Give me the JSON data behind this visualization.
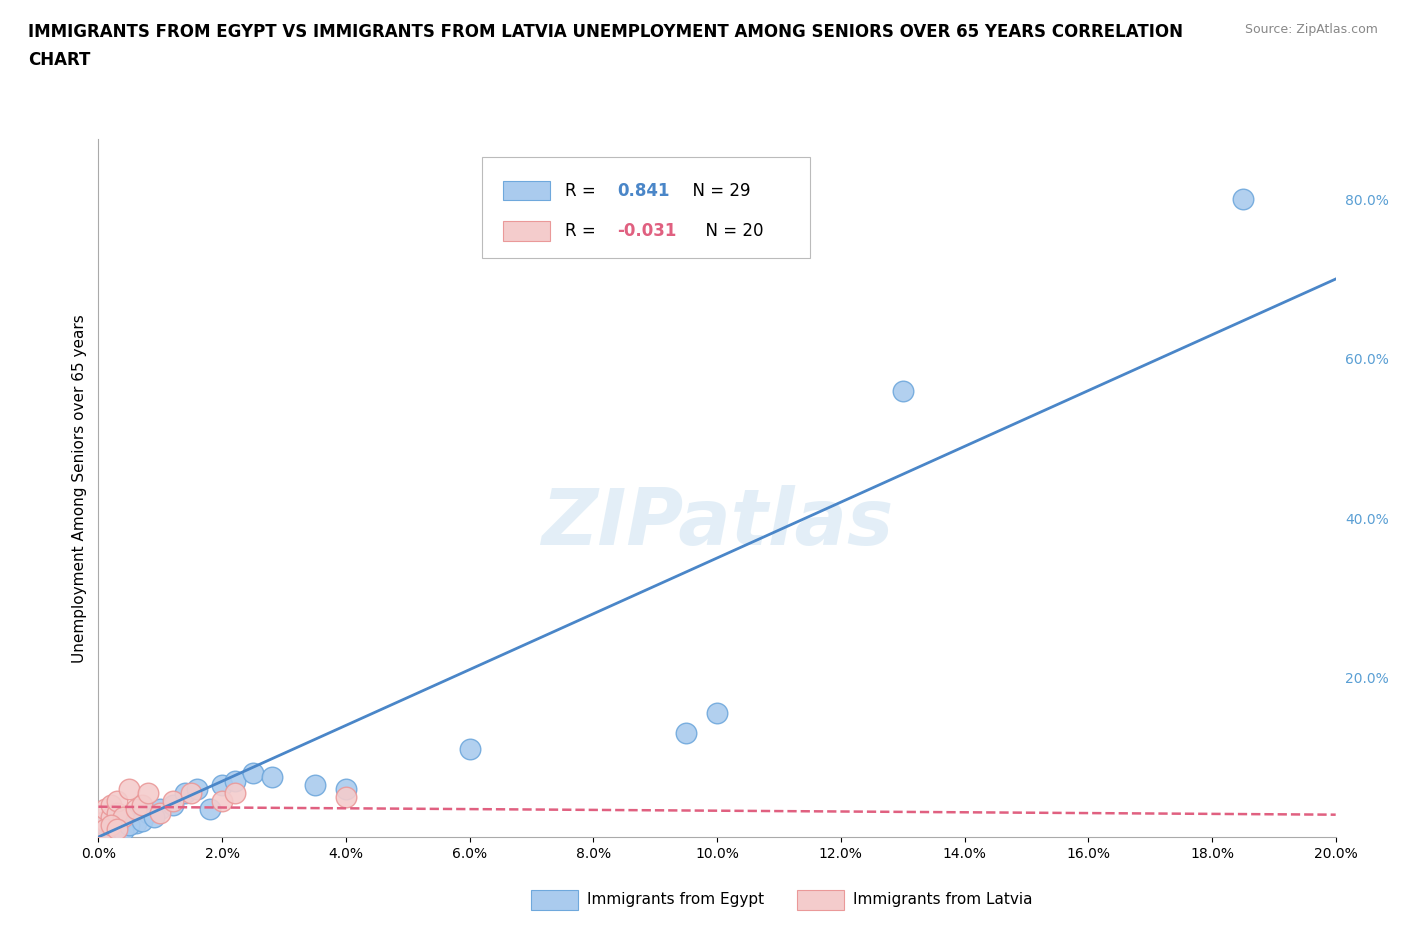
{
  "title_line1": "IMMIGRANTS FROM EGYPT VS IMMIGRANTS FROM LATVIA UNEMPLOYMENT AMONG SENIORS OVER 65 YEARS CORRELATION",
  "title_line2": "CHART",
  "source_text": "Source: ZipAtlas.com",
  "watermark": "ZIPatlas",
  "ylabel": "Unemployment Among Seniors over 65 years",
  "xlim": [
    0.0,
    0.2
  ],
  "ylim": [
    0.0,
    0.875
  ],
  "xticks": [
    0.0,
    0.02,
    0.04,
    0.06,
    0.08,
    0.1,
    0.12,
    0.14,
    0.16,
    0.18,
    0.2
  ],
  "yticks_right": [
    0.2,
    0.4,
    0.6,
    0.8
  ],
  "egypt_color": "#6fa8dc",
  "egypt_color_fill": "#aacbee",
  "latvia_color": "#ea9999",
  "latvia_color_fill": "#f4cccc",
  "egypt_R": 0.841,
  "egypt_N": 29,
  "latvia_R": -0.031,
  "latvia_N": 20,
  "egypt_points_x": [
    0.001,
    0.002,
    0.003,
    0.004,
    0.005,
    0.006,
    0.008,
    0.01,
    0.012,
    0.014,
    0.016,
    0.018,
    0.02,
    0.022,
    0.025,
    0.028,
    0.035,
    0.04,
    0.06,
    0.095,
    0.1,
    0.13,
    0.185,
    0.002,
    0.003,
    0.004,
    0.005,
    0.007,
    0.009
  ],
  "egypt_points_y": [
    0.015,
    0.02,
    0.018,
    0.022,
    0.025,
    0.018,
    0.03,
    0.035,
    0.04,
    0.055,
    0.06,
    0.035,
    0.065,
    0.07,
    0.08,
    0.075,
    0.065,
    0.06,
    0.11,
    0.13,
    0.155,
    0.56,
    0.8,
    0.01,
    0.012,
    0.008,
    0.015,
    0.02,
    0.025
  ],
  "latvia_points_x": [
    0.001,
    0.001,
    0.002,
    0.002,
    0.003,
    0.003,
    0.004,
    0.005,
    0.006,
    0.007,
    0.008,
    0.01,
    0.012,
    0.015,
    0.02,
    0.022,
    0.04,
    0.001,
    0.002,
    0.003
  ],
  "latvia_points_y": [
    0.02,
    0.035,
    0.025,
    0.04,
    0.03,
    0.045,
    0.025,
    0.06,
    0.035,
    0.04,
    0.055,
    0.03,
    0.045,
    0.055,
    0.045,
    0.055,
    0.05,
    0.01,
    0.015,
    0.01
  ],
  "egypt_line_x": [
    0.0,
    0.2
  ],
  "egypt_line_y": [
    0.0,
    0.7
  ],
  "latvia_line_x": [
    0.0,
    0.2
  ],
  "latvia_line_y": [
    0.038,
    0.028
  ],
  "grid_color": "#cccccc",
  "background_color": "#ffffff",
  "axis_label_fontsize": 11,
  "tick_label_fontsize": 10,
  "right_tick_color": "#5a9fd4"
}
